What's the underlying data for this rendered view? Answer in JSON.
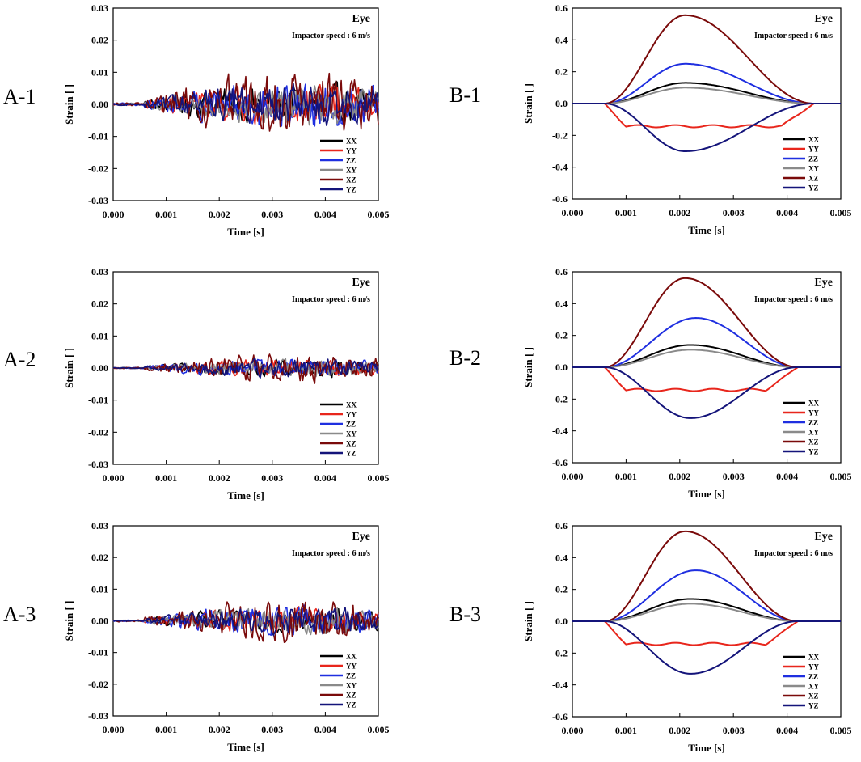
{
  "colors": {
    "XX": "#000000",
    "YY": "#e8261c",
    "ZZ": "#1f2fe0",
    "XY": "#8a8a8a",
    "XZ": "#7a0a0a",
    "YZ": "#14147a"
  },
  "chart_data": [
    {
      "id": "A-1",
      "panel_label": "A-1",
      "type": "line",
      "title": "Eye",
      "subtitle": "Impactor speed : 6 m/s",
      "xlabel": "Time [s]",
      "ylabel": "Strain [ ]",
      "xlim": [
        0,
        0.005
      ],
      "ylim": [
        -0.03,
        0.03
      ],
      "xticks": [
        "0.000",
        "0.001",
        "0.002",
        "0.003",
        "0.004",
        "0.005"
      ],
      "yticks": [
        "-0.03",
        "-0.02",
        "-0.01",
        "0.00",
        "0.01",
        "0.02",
        "0.03"
      ],
      "legend": [
        "XX",
        "YY",
        "ZZ",
        "XY",
        "XZ",
        "YZ"
      ],
      "legend_position": "bottom-right",
      "noisy": true,
      "amplitude": 0.7
    },
    {
      "id": "B-1",
      "panel_label": "B-1",
      "type": "line",
      "title": "Eye",
      "subtitle": "Impactor speed : 6 m/s",
      "xlabel": "Time [s]",
      "ylabel": "Strain [ ]",
      "xlim": [
        0,
        0.005
      ],
      "ylim": [
        -0.6,
        0.6
      ],
      "xticks": [
        "0.000",
        "0.001",
        "0.002",
        "0.003",
        "0.004",
        "0.005"
      ],
      "yticks": [
        "-0.6",
        "-0.4",
        "-0.2",
        "0.0",
        "0.2",
        "0.4",
        "0.6"
      ],
      "legend": [
        "XX",
        "YY",
        "ZZ",
        "XY",
        "XZ",
        "YZ"
      ],
      "legend_position": "bottom-right",
      "noisy": false,
      "series": [
        {
          "name": "XX",
          "peak": 0.13,
          "peak_time": 0.0021,
          "end": 0.0045
        },
        {
          "name": "YY",
          "peak": -0.15,
          "peak_time": 0.0021,
          "end": 0.0045,
          "plateau": true
        },
        {
          "name": "ZZ",
          "peak": 0.25,
          "peak_time": 0.0021,
          "end": 0.0045
        },
        {
          "name": "XY",
          "peak": 0.1,
          "peak_time": 0.0021,
          "end": 0.0045
        },
        {
          "name": "XZ",
          "peak": 0.555,
          "peak_time": 0.0021,
          "end": 0.0045
        },
        {
          "name": "YZ",
          "peak": -0.3,
          "peak_time": 0.0021,
          "end": 0.0045
        }
      ]
    },
    {
      "id": "A-2",
      "panel_label": "A-2",
      "type": "line",
      "title": "Eye",
      "subtitle": "Impactor speed : 6 m/s",
      "xlabel": "Time [s]",
      "ylabel": "Strain [ ]",
      "xlim": [
        0,
        0.005
      ],
      "ylim": [
        -0.03,
        0.03
      ],
      "xticks": [
        "0.000",
        "0.001",
        "0.002",
        "0.003",
        "0.004",
        "0.005"
      ],
      "yticks": [
        "-0.03",
        "-0.02",
        "-0.01",
        "0.00",
        "0.01",
        "0.02",
        "0.03"
      ],
      "legend": [
        "XX",
        "YY",
        "ZZ",
        "XY",
        "XZ",
        "YZ"
      ],
      "legend_position": "bottom-right",
      "noisy": true,
      "amplitude": 0.3
    },
    {
      "id": "B-2",
      "panel_label": "B-2",
      "type": "line",
      "title": "Eye",
      "subtitle": "Impactor speed : 6 m/s",
      "xlabel": "Time [s]",
      "ylabel": "Strain [ ]",
      "xlim": [
        0,
        0.005
      ],
      "ylim": [
        -0.6,
        0.6
      ],
      "xticks": [
        "0.000",
        "0.001",
        "0.002",
        "0.003",
        "0.004",
        "0.005"
      ],
      "yticks": [
        "-0.6",
        "-0.4",
        "-0.2",
        "0.0",
        "0.2",
        "0.4",
        "0.6"
      ],
      "legend": [
        "XX",
        "YY",
        "ZZ",
        "XY",
        "XZ",
        "YZ"
      ],
      "legend_position": "bottom-right",
      "noisy": false,
      "series": [
        {
          "name": "XX",
          "peak": 0.14,
          "peak_time": 0.0022,
          "end": 0.0042
        },
        {
          "name": "YY",
          "peak": -0.15,
          "peak_time": 0.0022,
          "end": 0.0042,
          "plateau": true
        },
        {
          "name": "ZZ",
          "peak": 0.31,
          "peak_time": 0.0023,
          "end": 0.0042
        },
        {
          "name": "XY",
          "peak": 0.11,
          "peak_time": 0.0022,
          "end": 0.0042
        },
        {
          "name": "XZ",
          "peak": 0.56,
          "peak_time": 0.0021,
          "end": 0.0042
        },
        {
          "name": "YZ",
          "peak": -0.32,
          "peak_time": 0.0022,
          "end": 0.0042
        }
      ]
    },
    {
      "id": "A-3",
      "panel_label": "A-3",
      "type": "line",
      "title": "Eye",
      "subtitle": "Impactor speed : 6 m/s",
      "xlabel": "Time [s]",
      "ylabel": "Strain [ ]",
      "xlim": [
        0,
        0.005
      ],
      "ylim": [
        -0.03,
        0.03
      ],
      "xticks": [
        "0.000",
        "0.001",
        "0.002",
        "0.003",
        "0.004",
        "0.005"
      ],
      "yticks": [
        "-0.03",
        "-0.02",
        "-0.01",
        "0.00",
        "0.01",
        "0.02",
        "0.03"
      ],
      "legend": [
        "XX",
        "YY",
        "ZZ",
        "XY",
        "XZ",
        "YZ"
      ],
      "legend_position": "bottom-right",
      "noisy": true,
      "amplitude": 0.45
    },
    {
      "id": "B-3",
      "panel_label": "B-3",
      "type": "line",
      "title": "Eye",
      "subtitle": "Impactor speed : 6 m/s",
      "xlabel": "Time [s]",
      "ylabel": "Strain [ ]",
      "xlim": [
        0,
        0.005
      ],
      "ylim": [
        -0.6,
        0.6
      ],
      "xticks": [
        "0.000",
        "0.001",
        "0.002",
        "0.003",
        "0.004",
        "0.005"
      ],
      "yticks": [
        "-0.6",
        "-0.4",
        "-0.2",
        "0.0",
        "0.2",
        "0.4",
        "0.6"
      ],
      "legend": [
        "XX",
        "YY",
        "ZZ",
        "XY",
        "XZ",
        "YZ"
      ],
      "legend_position": "bottom-right",
      "noisy": false,
      "series": [
        {
          "name": "XX",
          "peak": 0.14,
          "peak_time": 0.0022,
          "end": 0.0042
        },
        {
          "name": "YY",
          "peak": -0.15,
          "peak_time": 0.0022,
          "end": 0.0042,
          "plateau": true
        },
        {
          "name": "ZZ",
          "peak": 0.32,
          "peak_time": 0.0023,
          "end": 0.0042
        },
        {
          "name": "XY",
          "peak": 0.11,
          "peak_time": 0.0022,
          "end": 0.0042
        },
        {
          "name": "XZ",
          "peak": 0.565,
          "peak_time": 0.0021,
          "end": 0.0042
        },
        {
          "name": "YZ",
          "peak": -0.33,
          "peak_time": 0.0022,
          "end": 0.0042
        }
      ]
    }
  ]
}
